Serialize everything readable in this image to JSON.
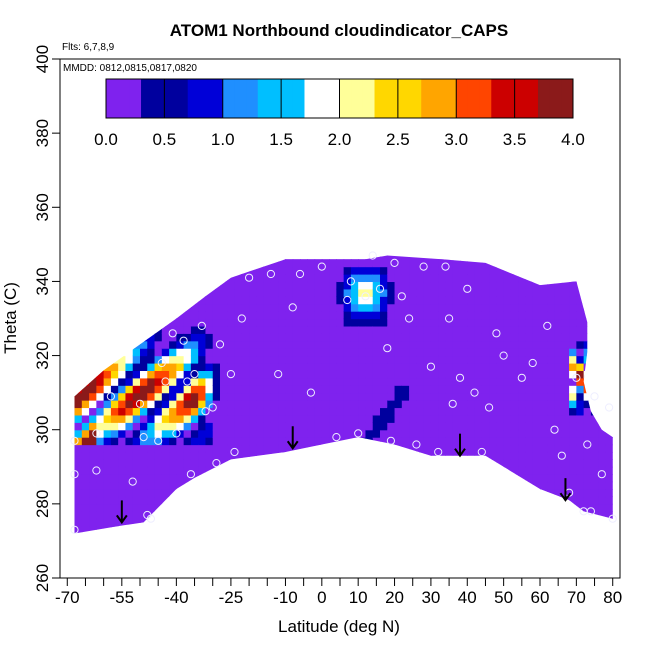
{
  "chart_data": {
    "type": "heatmap",
    "title": "ATOM1 Northbound cloudindicator_CAPS",
    "flights_note": "Flts: 6,7,8,9",
    "dates_note": "MMDD: 0812,0815,0817,0820",
    "xlabel": "Latitude (deg N)",
    "ylabel": "Theta (C)",
    "xlim": [
      -72,
      82
    ],
    "ylim": [
      260,
      400
    ],
    "x_tick_labels": [
      "-70",
      "-55",
      "-40",
      "-25",
      "-10",
      "0",
      "10",
      "20",
      "30",
      "40",
      "50",
      "60",
      "70",
      "80"
    ],
    "x_tick_values": [
      -70,
      -55,
      -40,
      -25,
      -10,
      0,
      10,
      20,
      30,
      40,
      50,
      60,
      70,
      80
    ],
    "x_minor_ticks": [
      -65,
      -60,
      -50,
      -45,
      -35,
      -30,
      -20,
      -15,
      -5,
      5,
      15,
      25,
      35,
      45,
      55,
      65,
      75
    ],
    "y_tick_labels": [
      "260",
      "280",
      "300",
      "320",
      "340",
      "360",
      "380",
      "400"
    ],
    "y_tick_values": [
      260,
      280,
      300,
      320,
      340,
      360,
      380,
      400
    ],
    "colorbar": {
      "range": [
        0,
        4
      ],
      "tick_labels": [
        "0.0",
        "0.5",
        "1.0",
        "1.5",
        "2.0",
        "2.5",
        "3.0",
        "3.5",
        "4.0"
      ],
      "tick_values": [
        0,
        0.5,
        1,
        1.5,
        2,
        2.5,
        3,
        3.5,
        4
      ],
      "colors": [
        "#7f22ee",
        "#00009e",
        "#0000d8",
        "#1f8fff",
        "#00bfff",
        "#ffffff",
        "#ffff99",
        "#ffd700",
        "#ffa500",
        "#ff4500",
        "#cc0000",
        "#8b1a1a"
      ]
    },
    "background_value": 0.0,
    "domain_polygon": [
      [
        -68,
        272
      ],
      [
        -56,
        274
      ],
      [
        -49,
        275
      ],
      [
        -40,
        284
      ],
      [
        -35,
        287
      ],
      [
        -25,
        292
      ],
      [
        -10,
        294
      ],
      [
        0,
        296
      ],
      [
        10,
        298
      ],
      [
        20,
        296
      ],
      [
        30,
        293
      ],
      [
        45,
        293
      ],
      [
        60,
        284
      ],
      [
        68,
        281
      ],
      [
        72,
        278
      ],
      [
        80,
        276
      ],
      [
        80,
        298
      ],
      [
        77,
        300
      ],
      [
        74,
        305
      ],
      [
        72,
        313
      ],
      [
        73,
        321
      ],
      [
        73,
        329
      ],
      [
        70,
        340
      ],
      [
        60,
        339
      ],
      [
        45,
        345
      ],
      [
        33,
        346
      ],
      [
        18,
        347
      ],
      [
        12,
        346
      ],
      [
        -10,
        346
      ],
      [
        -25,
        341
      ],
      [
        -32,
        336
      ],
      [
        -40,
        330
      ],
      [
        -50,
        323
      ],
      [
        -60,
        316
      ],
      [
        -68,
        309
      ]
    ],
    "features": [
      {
        "name": "southern-cloud-layers",
        "lat_range": [
          -68,
          -28
        ],
        "theta_range": [
          295,
          333
        ],
        "max_value": 4.0
      },
      {
        "name": "tropical-upper-cloud",
        "lat_range": [
          2,
          22
        ],
        "theta_range": [
          325,
          347
        ],
        "max_value": 2.3
      },
      {
        "name": "tropical-lower-band",
        "lat_range": [
          10,
          24
        ],
        "theta_range": [
          296,
          313
        ],
        "max_value": 0.5
      },
      {
        "name": "northern-cloud-layers",
        "lat_range": [
          68,
          80
        ],
        "theta_range": [
          304,
          330
        ],
        "max_value": 3.8
      }
    ],
    "sample_points": [
      [
        -68,
        288
      ],
      [
        -68,
        297
      ],
      [
        -68,
        273
      ],
      [
        -62,
        289
      ],
      [
        -62,
        299
      ],
      [
        -58,
        309
      ],
      [
        -52,
        286
      ],
      [
        -50,
        307
      ],
      [
        -49,
        298
      ],
      [
        -48,
        277
      ],
      [
        -47,
        276
      ],
      [
        -45,
        297
      ],
      [
        -44,
        318
      ],
      [
        -43,
        313
      ],
      [
        -41,
        326
      ],
      [
        -40,
        299
      ],
      [
        -38,
        324
      ],
      [
        -37,
        313
      ],
      [
        -36,
        288
      ],
      [
        -35,
        315
      ],
      [
        -33,
        328
      ],
      [
        -32,
        305
      ],
      [
        -30,
        306
      ],
      [
        -29,
        291
      ],
      [
        -28,
        323
      ],
      [
        -25,
        315
      ],
      [
        -24,
        294
      ],
      [
        -22,
        330
      ],
      [
        -20,
        341
      ],
      [
        -14,
        342
      ],
      [
        -12,
        315
      ],
      [
        -8,
        333
      ],
      [
        -6,
        342
      ],
      [
        -3,
        310
      ],
      [
        0,
        344
      ],
      [
        4,
        298
      ],
      [
        7,
        335
      ],
      [
        8,
        340
      ],
      [
        10,
        299
      ],
      [
        12,
        336
      ],
      [
        14,
        347
      ],
      [
        16,
        338
      ],
      [
        18,
        322
      ],
      [
        19,
        297
      ],
      [
        20,
        345
      ],
      [
        22,
        336
      ],
      [
        24,
        330
      ],
      [
        26,
        296
      ],
      [
        28,
        344
      ],
      [
        30,
        317
      ],
      [
        32,
        294
      ],
      [
        34,
        344
      ],
      [
        35,
        330
      ],
      [
        36,
        307
      ],
      [
        38,
        314
      ],
      [
        40,
        338
      ],
      [
        42,
        310
      ],
      [
        44,
        294
      ],
      [
        46,
        306
      ],
      [
        48,
        326
      ],
      [
        50,
        320
      ],
      [
        55,
        314
      ],
      [
        58,
        318
      ],
      [
        62,
        328
      ],
      [
        64,
        300
      ],
      [
        66,
        293
      ],
      [
        68,
        283
      ],
      [
        70,
        314
      ],
      [
        72,
        278
      ],
      [
        73,
        296
      ],
      [
        74,
        278
      ],
      [
        75,
        309
      ],
      [
        77,
        288
      ],
      [
        79,
        306
      ],
      [
        80,
        276
      ]
    ],
    "flight_arrows": [
      [
        -55,
        275
      ],
      [
        -8,
        295
      ],
      [
        38,
        293
      ],
      [
        67,
        281
      ]
    ]
  }
}
